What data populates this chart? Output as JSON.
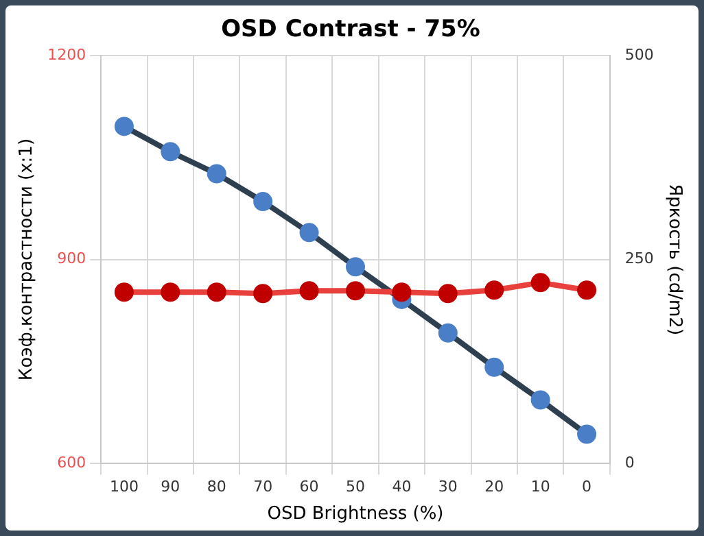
{
  "chart_data": {
    "type": "line",
    "title": "OSD Contrast - 75%",
    "xlabel": "OSD Brightness (%)",
    "ylabel": "Коэф.контрастности (x:1)",
    "y2label": "Яркость (cd/m2)",
    "categories": [
      "100",
      "90",
      "80",
      "70",
      "60",
      "50",
      "40",
      "30",
      "20",
      "10",
      "0"
    ],
    "series": [
      {
        "color": "#e8403c",
        "values": [
          852,
          852,
          852,
          850,
          854,
          854,
          852,
          850,
          855,
          866,
          855
        ]
      },
      {
        "color": "#2e3f50",
        "axis": "y2",
        "values": [
          413,
          382,
          355,
          321,
          283,
          241,
          201,
          160,
          118,
          78,
          36
        ]
      }
    ],
    "ylim": [
      600,
      1200
    ],
    "yticks": [
      600,
      900,
      1200
    ],
    "y2lim": [
      0,
      500
    ],
    "y2ticks": [
      0,
      250,
      500
    ],
    "grid": true,
    "legend": false,
    "marker": "circle",
    "line_style": "solid"
  }
}
